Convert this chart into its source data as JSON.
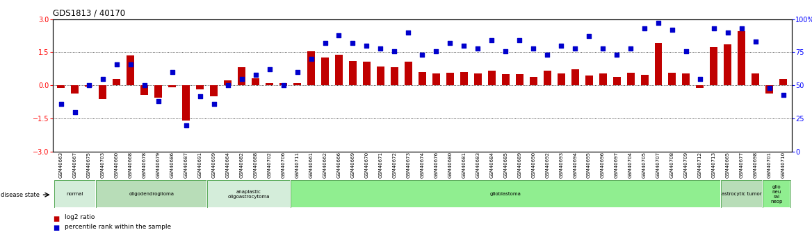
{
  "title": "GDS1813 / 40170",
  "samples": [
    "GSM40663",
    "GSM40667",
    "GSM40675",
    "GSM40703",
    "GSM40660",
    "GSM40668",
    "GSM40678",
    "GSM40679",
    "GSM40686",
    "GSM40687",
    "GSM40691",
    "GSM40699",
    "GSM40664",
    "GSM40682",
    "GSM40688",
    "GSM40702",
    "GSM40706",
    "GSM40711",
    "GSM40661",
    "GSM40662",
    "GSM40666",
    "GSM40669",
    "GSM40670",
    "GSM40671",
    "GSM40672",
    "GSM40673",
    "GSM40674",
    "GSM40676",
    "GSM40680",
    "GSM40681",
    "GSM40683",
    "GSM40684",
    "GSM40685",
    "GSM40689",
    "GSM40690",
    "GSM40692",
    "GSM40693",
    "GSM40694",
    "GSM40695",
    "GSM40696",
    "GSM40697",
    "GSM40704",
    "GSM40705",
    "GSM40707",
    "GSM40708",
    "GSM40709",
    "GSM40712",
    "GSM40713",
    "GSM40665",
    "GSM40677",
    "GSM40698",
    "GSM40701",
    "GSM40710"
  ],
  "log2_ratio": [
    -0.12,
    -0.35,
    -0.05,
    -0.62,
    0.28,
    1.35,
    -0.42,
    -0.55,
    -0.08,
    -1.58,
    -0.18,
    -0.48,
    0.22,
    0.82,
    0.32,
    0.12,
    0.12,
    0.12,
    1.55,
    1.25,
    1.38,
    1.12,
    1.08,
    0.85,
    0.82,
    1.08,
    0.6,
    0.55,
    0.58,
    0.62,
    0.55,
    0.68,
    0.52,
    0.5,
    0.4,
    0.68,
    0.55,
    0.72,
    0.45,
    0.55,
    0.38,
    0.58,
    0.48,
    1.92,
    0.58,
    0.55,
    -0.1,
    1.72,
    1.85,
    2.45,
    0.55,
    -0.38,
    0.3
  ],
  "percentile": [
    36,
    30,
    50,
    55,
    66,
    66,
    50,
    38,
    60,
    20,
    42,
    36,
    50,
    55,
    58,
    62,
    50,
    60,
    70,
    82,
    88,
    82,
    80,
    78,
    76,
    90,
    73,
    76,
    82,
    80,
    78,
    84,
    76,
    84,
    78,
    73,
    80,
    78,
    87,
    78,
    73,
    78,
    93,
    97,
    92,
    76,
    55,
    93,
    90,
    93,
    83,
    48,
    43
  ],
  "disease_groups": [
    {
      "label": "normal",
      "start": 0,
      "end": 3,
      "color": "#d4edda"
    },
    {
      "label": "oligodendroglioma",
      "start": 3,
      "end": 11,
      "color": "#b8ddb8"
    },
    {
      "label": "anaplastic\noligoastrocytoma",
      "start": 11,
      "end": 17,
      "color": "#d4edda"
    },
    {
      "label": "glioblastoma",
      "start": 17,
      "end": 48,
      "color": "#90ee90"
    },
    {
      "label": "astrocytic tumor",
      "start": 48,
      "end": 51,
      "color": "#b8ddb8"
    },
    {
      "label": "glio\nneu\nral\nneop",
      "start": 51,
      "end": 53,
      "color": "#90ee90"
    }
  ],
  "bar_color": "#c00000",
  "dot_color": "#0000cc",
  "ylim_left": [
    -3,
    3
  ],
  "ylim_right": [
    0,
    100
  ],
  "yticks_left": [
    -3,
    -1.5,
    0,
    1.5,
    3
  ],
  "yticks_right": [
    0,
    25,
    50,
    75,
    100
  ],
  "background_color": "#ffffff"
}
